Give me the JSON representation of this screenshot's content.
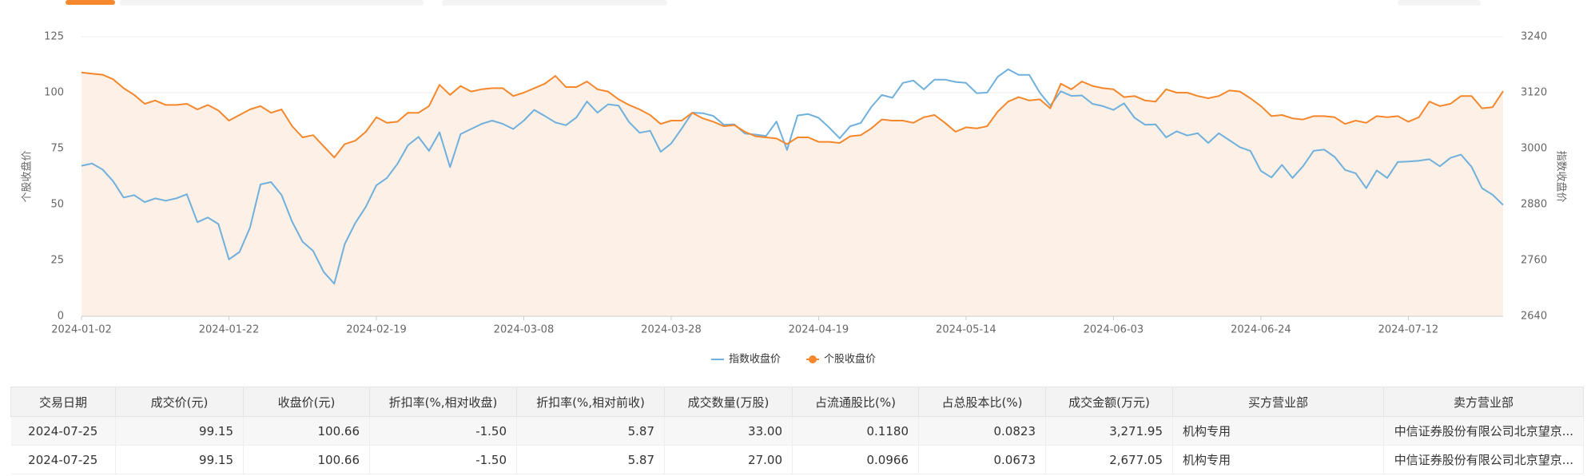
{
  "chart_data": {
    "type": "line",
    "ylabel": "个股收盘价",
    "y2label": "指数收盘价",
    "categories": [
      "2024-01-02",
      null,
      null,
      null,
      null,
      null,
      null,
      null,
      null,
      null,
      null,
      null,
      null,
      null,
      "2024-01-22",
      null,
      null,
      null,
      null,
      null,
      null,
      null,
      null,
      null,
      null,
      null,
      null,
      null,
      "2024-02-19",
      null,
      null,
      null,
      null,
      null,
      null,
      null,
      null,
      null,
      null,
      null,
      null,
      null,
      "2024-03-08",
      null,
      null,
      null,
      null,
      null,
      null,
      null,
      null,
      null,
      null,
      null,
      null,
      null,
      "2024-03-28",
      null,
      null,
      null,
      null,
      null,
      null,
      null,
      null,
      null,
      null,
      null,
      null,
      null,
      "2024-04-19",
      null,
      null,
      null,
      null,
      null,
      null,
      null,
      null,
      null,
      null,
      null,
      null,
      null,
      "2024-05-14",
      null,
      null,
      null,
      null,
      null,
      null,
      null,
      null,
      null,
      null,
      null,
      null,
      null,
      "2024-06-03",
      null,
      null,
      null,
      null,
      null,
      null,
      null,
      null,
      null,
      null,
      null,
      null,
      null,
      "2024-06-24",
      null,
      null,
      null,
      null,
      null,
      null,
      null,
      null,
      null,
      null,
      null,
      null,
      null,
      "2024-07-12",
      null,
      null,
      null,
      null,
      null,
      null,
      null,
      null,
      null
    ],
    "ylim": [
      0,
      125
    ],
    "yticks": [
      0,
      25,
      50,
      75,
      100,
      125
    ],
    "y2lim": [
      2640,
      3240
    ],
    "y2ticks": [
      2640,
      2760,
      2880,
      3000,
      3120,
      3240
    ],
    "grid": true,
    "legend": "bottom",
    "series": [
      {
        "name": "指数收盘价",
        "color": "#6fb0dc",
        "axis": "y2",
        "values": [
          2963,
          2968,
          2955,
          2930,
          2895,
          2900,
          2885,
          2893,
          2888,
          2893,
          2902,
          2842,
          2852,
          2838,
          2762,
          2778,
          2830,
          2923,
          2928,
          2900,
          2843,
          2800,
          2780,
          2735,
          2710,
          2795,
          2840,
          2875,
          2921,
          2937,
          2967,
          3007,
          3025,
          2995,
          3035,
          2960,
          3031,
          3042,
          3053,
          3060,
          3053,
          3042,
          3060,
          3083,
          3070,
          3056,
          3050,
          3067,
          3101,
          3077,
          3095,
          3092,
          3057,
          3034,
          3038,
          2993,
          3011,
          3043,
          3077,
          3076,
          3070,
          3051,
          3052,
          3032,
          3030,
          3027,
          3058,
          2997,
          3071,
          3074,
          3066,
          3045,
          3022,
          3048,
          3055,
          3089,
          3115,
          3109,
          3141,
          3146,
          3127,
          3148,
          3148,
          3143,
          3141,
          3119,
          3120,
          3154,
          3170,
          3158,
          3158,
          3120,
          3092,
          3123,
          3113,
          3114,
          3096,
          3091,
          3083,
          3097,
          3066,
          3051,
          3052,
          3024,
          3037,
          3028,
          3033,
          3012,
          3033,
          3018,
          3003,
          2995,
          2952,
          2938,
          2965,
          2937,
          2962,
          2995,
          2998,
          2982,
          2954,
          2947,
          2915,
          2953,
          2937,
          2971,
          2972,
          2974,
          2977,
          2962,
          2980,
          2987,
          2961,
          2915,
          2901,
          2879
        ]
      },
      {
        "name": "个股收盘价",
        "color": "#f5872c",
        "area_color": "#fdf0e6",
        "values": [
          109,
          108.5,
          108,
          106,
          102,
          99,
          95,
          96.5,
          94.5,
          94.5,
          95,
          92.5,
          94.5,
          92,
          87.5,
          90,
          92.5,
          94,
          91,
          92.5,
          85,
          80,
          81,
          76,
          71,
          77,
          78.5,
          82.5,
          89,
          86.5,
          87,
          91,
          91,
          94,
          103.5,
          99,
          103,
          100.5,
          101.5,
          102,
          102,
          98.5,
          100,
          102,
          104,
          107.5,
          102.5,
          102.5,
          105,
          101.5,
          100.5,
          97,
          94.5,
          92.5,
          90,
          86,
          87.5,
          87.5,
          91,
          88.5,
          87,
          85,
          85.5,
          82.5,
          80.5,
          80,
          79.5,
          77,
          80,
          80,
          78,
          78,
          77.5,
          80.5,
          81,
          84,
          88,
          87.5,
          87.5,
          86.5,
          89,
          90,
          86.5,
          82.5,
          84.5,
          84,
          85,
          91.5,
          96,
          98,
          96.5,
          97,
          93,
          104,
          101.5,
          105,
          103,
          102,
          101.5,
          98,
          98.5,
          96.5,
          96,
          101.5,
          100,
          100,
          98.5,
          97.5,
          98.5,
          101,
          100.5,
          97.5,
          94,
          89.5,
          90,
          88.5,
          88,
          89.5,
          89.5,
          89,
          86,
          87.5,
          86.5,
          89.5,
          89,
          89.5,
          87,
          89,
          96,
          94,
          95,
          98.5,
          98.5,
          93,
          93.5,
          100.66
        ]
      }
    ]
  },
  "table": {
    "columns": [
      "交易日期",
      "成交价(元)",
      "收盘价(元)",
      "折扣率(%,相对收盘)",
      "折扣率(%,相对前收)",
      "成交数量(万股)",
      "占流通股比(%)",
      "占总股本比(%)",
      "成交金额(万元)",
      "买方营业部",
      "卖方营业部"
    ],
    "rows": [
      [
        "2024-07-25",
        "99.15",
        "100.66",
        "-1.50",
        "5.87",
        "33.00",
        "0.1180",
        "0.0823",
        "3,271.95",
        "机构专用",
        "中信证券股份有限公司北京望京..."
      ],
      [
        "2024-07-25",
        "99.15",
        "100.66",
        "-1.50",
        "5.87",
        "27.00",
        "0.0966",
        "0.0673",
        "2,677.05",
        "机构专用",
        "中信证券股份有限公司北京望京..."
      ]
    ]
  }
}
